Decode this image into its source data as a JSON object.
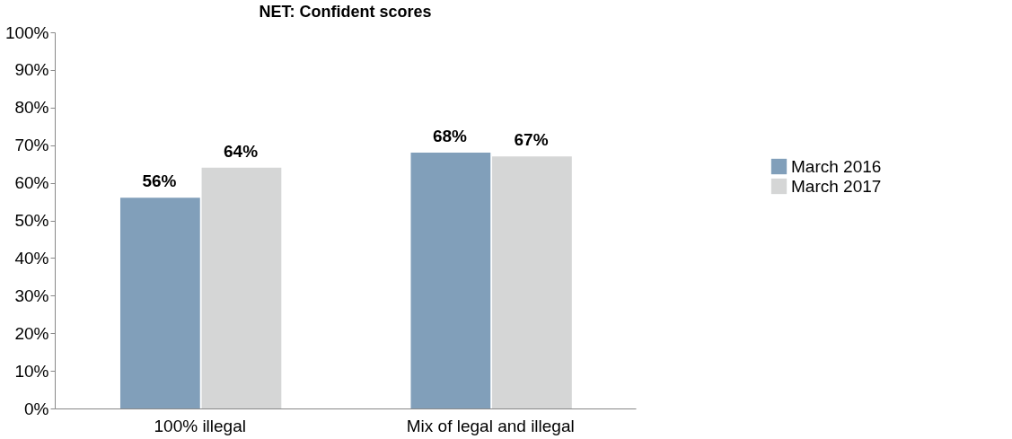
{
  "chart_data": {
    "type": "bar",
    "title": "NET: Confident scores",
    "categories": [
      "100% illegal",
      "Mix of legal and illegal"
    ],
    "series": [
      {
        "name": "March 2016",
        "color": "#819fba",
        "values": [
          56,
          68
        ],
        "value_labels": [
          "56%",
          "68%"
        ]
      },
      {
        "name": "March 2017",
        "color": "#d5d6d6",
        "values": [
          64,
          67
        ],
        "value_labels": [
          "64%",
          "67%"
        ]
      }
    ],
    "ylim": [
      0,
      100
    ],
    "yticks": [
      {
        "value": 0,
        "label": "0%"
      },
      {
        "value": 10,
        "label": "10%"
      },
      {
        "value": 20,
        "label": "20%"
      },
      {
        "value": 30,
        "label": "30%"
      },
      {
        "value": 40,
        "label": "40%"
      },
      {
        "value": 50,
        "label": "50%"
      },
      {
        "value": 60,
        "label": "60%"
      },
      {
        "value": 70,
        "label": "70%"
      },
      {
        "value": 80,
        "label": "80%"
      },
      {
        "value": 90,
        "label": "90%"
      },
      {
        "value": 100,
        "label": "100%"
      }
    ],
    "grid": false,
    "legend": "right"
  }
}
